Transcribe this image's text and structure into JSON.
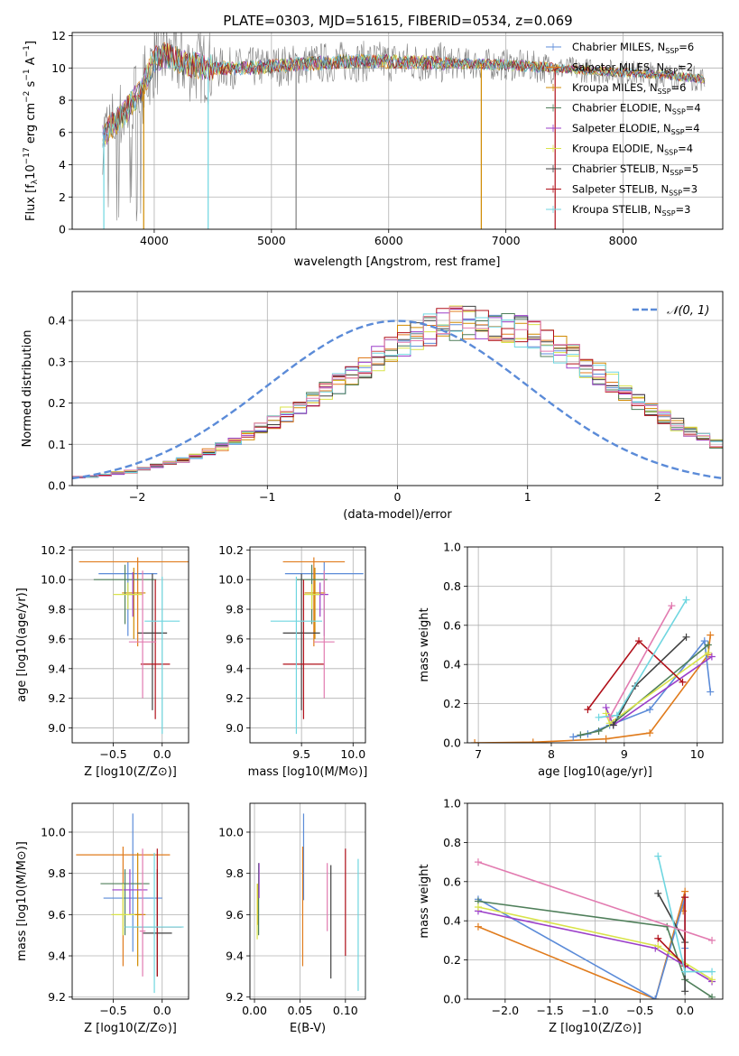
{
  "figure_title": "PLATE=0303, MJD=51615, FIBERID=0534, z=0.069",
  "colors": {
    "Chabrier MILES": "#5b8bd8",
    "Salpeter MILES": "#e07b1c",
    "Kroupa MILES": "#d08a00",
    "Chabrier ELODIE": "#4f7f5a",
    "Salpeter ELODIE": "#9b3fc9",
    "Kroupa ELODIE": "#d9e34a",
    "Chabrier STELIB": "#404040",
    "Salpeter STELIB": "#b0101a",
    "Kroupa STELIB": "#6fd6e0",
    "pink": "#e27bb0",
    "data": "#808080"
  },
  "chart_data": [
    {
      "id": "spectrum",
      "type": "line",
      "title": "PLATE=0303, MJD=51615, FIBERID=0534, z=0.069",
      "xlabel": "wavelength [Angstrom, rest frame]",
      "ylabel": "Flux [f_λ10^-17 erg cm^-2 s^-1 A^-1]",
      "xlim": [
        3300,
        8850
      ],
      "ylim": [
        0,
        12.2
      ],
      "xticks": [
        4000,
        5000,
        6000,
        7000,
        8000
      ],
      "yticks": [
        0,
        2,
        4,
        6,
        8,
        10,
        12
      ],
      "legend_position": "top-right",
      "legend": [
        {
          "label": "Chabrier MILES, N_SSP=6",
          "text": "Chabrier MILES, N",
          "sub": "SSP",
          "val": "=6",
          "color": "#5b8bd8"
        },
        {
          "label": "Salpeter MILES, N_SSP=2",
          "text": "Salpeter MILES, N",
          "sub": "SSP",
          "val": "=2",
          "color": "#e07b1c"
        },
        {
          "label": "Kroupa MILES, N_SSP=6",
          "text": "Kroupa MILES, N",
          "sub": "SSP",
          "val": "=6",
          "color": "#d08a00"
        },
        {
          "label": "Chabrier ELODIE, N_SSP=4",
          "text": "Chabrier ELODIE, N",
          "sub": "SSP",
          "val": "=4",
          "color": "#4f7f5a"
        },
        {
          "label": "Salpeter ELODIE, N_SSP=4",
          "text": "Salpeter ELODIE, N",
          "sub": "SSP",
          "val": "=4",
          "color": "#9b3fc9"
        },
        {
          "label": "Kroupa ELODIE, N_SSP=4",
          "text": "Kroupa ELODIE, N",
          "sub": "SSP",
          "val": "=4",
          "color": "#d9e34a"
        },
        {
          "label": "Chabrier STELIB, N_SSP=5",
          "text": "Chabrier STELIB, N",
          "sub": "SSP",
          "val": "=5",
          "color": "#404040"
        },
        {
          "label": "Salpeter STELIB, N_SSP=3",
          "text": "Salpeter STELIB, N",
          "sub": "SSP",
          "val": "=3",
          "color": "#b0101a"
        },
        {
          "label": "Kroupa STELIB, N_SSP=3",
          "text": "Kroupa STELIB, N",
          "sub": "SSP",
          "val": "=3",
          "color": "#6fd6e0"
        }
      ],
      "continuum_knots": [
        [
          3550,
          5.7
        ],
        [
          3650,
          6.5
        ],
        [
          3750,
          7.2
        ],
        [
          3900,
          8.8
        ],
        [
          4000,
          10.5
        ],
        [
          4100,
          10.8
        ],
        [
          4300,
          10.2
        ],
        [
          4500,
          10.0
        ],
        [
          4800,
          10.0
        ],
        [
          5200,
          10.2
        ],
        [
          5600,
          10.4
        ],
        [
          6000,
          10.4
        ],
        [
          6500,
          10.3
        ],
        [
          7000,
          10.2
        ],
        [
          7400,
          10.0
        ],
        [
          7800,
          9.8
        ],
        [
          8300,
          9.6
        ],
        [
          8700,
          9.3
        ]
      ],
      "dropout_lines": [
        3570,
        3910,
        4460,
        5210,
        6790,
        7420
      ]
    },
    {
      "id": "residuals",
      "type": "line",
      "xlabel": "(data-model)/error",
      "ylabel": "Normed distribution",
      "xlim": [
        -2.5,
        2.5
      ],
      "ylim": [
        0,
        0.47
      ],
      "xticks": [
        -2,
        -1,
        0,
        1,
        2
      ],
      "yticks": [
        0.0,
        0.1,
        0.2,
        0.3,
        0.4
      ],
      "legend_position": "top-right",
      "legend": [
        {
          "label": "𝒩(0, 1)",
          "color": "#5b8bd8",
          "style": "dashed"
        }
      ],
      "hist_bins": 50,
      "hist_range": [
        -2.5,
        2.5
      ],
      "hist_base": [
        0.02,
        0.022,
        0.025,
        0.03,
        0.034,
        0.04,
        0.047,
        0.054,
        0.062,
        0.072,
        0.083,
        0.094,
        0.108,
        0.122,
        0.138,
        0.155,
        0.172,
        0.19,
        0.21,
        0.228,
        0.25,
        0.272,
        0.29,
        0.31,
        0.328,
        0.35,
        0.364,
        0.378,
        0.388,
        0.394,
        0.398,
        0.396,
        0.392,
        0.385,
        0.375,
        0.362,
        0.346,
        0.33,
        0.31,
        0.29,
        0.268,
        0.248,
        0.226,
        0.205,
        0.185,
        0.165,
        0.148,
        0.13,
        0.115,
        0.1
      ]
    },
    {
      "id": "age_vs_Z",
      "type": "scatter",
      "xlabel": "Z [log10(Z/Z⊙)]",
      "ylabel": "age  [log10(age/yr)]",
      "xlim": [
        -0.92,
        0.27
      ],
      "ylim": [
        8.9,
        10.22
      ],
      "xticks": [
        -0.5,
        0.0
      ],
      "yticks": [
        9.0,
        9.2,
        9.4,
        9.6,
        9.8,
        10.0,
        10.2
      ],
      "points": [
        {
          "x": -0.35,
          "xerr": 0.3,
          "y": 10.04,
          "ylo": 9.62,
          "yhi": 10.12,
          "color": "#5b8bd8"
        },
        {
          "x": -0.25,
          "xerr": 0.6,
          "y": 10.12,
          "ylo": 9.55,
          "yhi": 10.15,
          "color": "#e07b1c"
        },
        {
          "x": -0.29,
          "xerr": 0.12,
          "y": 9.91,
          "ylo": 9.6,
          "yhi": 10.08,
          "color": "#d08a00"
        },
        {
          "x": -0.38,
          "xerr": 0.32,
          "y": 10.0,
          "ylo": 9.7,
          "yhi": 10.1,
          "color": "#4f7f5a"
        },
        {
          "x": -0.3,
          "xerr": 0.05,
          "y": 9.9,
          "ylo": 9.75,
          "yhi": 10.05,
          "color": "#9b3fc9"
        },
        {
          "x": -0.35,
          "xerr": 0.15,
          "y": 9.9,
          "ylo": 9.8,
          "yhi": 9.98,
          "color": "#d9e34a"
        },
        {
          "x": -0.1,
          "xerr": 0.15,
          "y": 9.64,
          "ylo": 9.12,
          "yhi": 10.04,
          "color": "#404040"
        },
        {
          "x": -0.07,
          "xerr": 0.15,
          "y": 9.43,
          "ylo": 9.06,
          "yhi": 10.0,
          "color": "#b0101a"
        },
        {
          "x": 0.0,
          "xerr": 0.18,
          "y": 9.72,
          "ylo": 8.96,
          "yhi": 10.02,
          "color": "#6fd6e0"
        },
        {
          "x": -0.2,
          "xerr": 0.14,
          "y": 9.58,
          "ylo": 9.2,
          "yhi": 10.06,
          "color": "#e27bb0"
        }
      ]
    },
    {
      "id": "age_vs_mass",
      "type": "scatter",
      "xlabel": "mass [log10(M/M⊙)]",
      "ylabel": "",
      "xlim": [
        9.0,
        10.12
      ],
      "ylim": [
        8.9,
        10.22
      ],
      "xticks": [
        9.5,
        10.0
      ],
      "yticks": [
        9.0,
        9.2,
        9.4,
        9.6,
        9.8,
        10.0,
        10.2
      ],
      "points": [
        {
          "x": 9.72,
          "xerr": 0.38,
          "y": 10.04,
          "ylo": 9.62,
          "yhi": 10.12,
          "color": "#5b8bd8"
        },
        {
          "x": 9.62,
          "xerr": 0.3,
          "y": 10.12,
          "ylo": 9.55,
          "yhi": 10.15,
          "color": "#e07b1c"
        },
        {
          "x": 9.63,
          "xerr": 0.1,
          "y": 9.91,
          "ylo": 9.6,
          "yhi": 10.08,
          "color": "#d08a00"
        },
        {
          "x": 9.6,
          "xerr": 0.15,
          "y": 10.0,
          "ylo": 9.7,
          "yhi": 10.1,
          "color": "#4f7f5a"
        },
        {
          "x": 9.68,
          "xerr": 0.08,
          "y": 9.9,
          "ylo": 9.75,
          "yhi": 9.98,
          "color": "#9b3fc9"
        },
        {
          "x": 9.6,
          "xerr": 0.08,
          "y": 9.9,
          "ylo": 9.8,
          "yhi": 9.97,
          "color": "#d9e34a"
        },
        {
          "x": 9.5,
          "xerr": 0.18,
          "y": 9.64,
          "ylo": 9.12,
          "yhi": 10.04,
          "color": "#404040"
        },
        {
          "x": 9.52,
          "xerr": 0.2,
          "y": 9.43,
          "ylo": 9.06,
          "yhi": 10.0,
          "color": "#b0101a"
        },
        {
          "x": 9.45,
          "xerr": 0.25,
          "y": 9.72,
          "ylo": 8.96,
          "yhi": 10.02,
          "color": "#6fd6e0"
        },
        {
          "x": 9.72,
          "xerr": 0.1,
          "y": 9.58,
          "ylo": 9.2,
          "yhi": 10.06,
          "color": "#e27bb0"
        }
      ]
    },
    {
      "id": "weight_vs_age",
      "type": "line",
      "xlabel": "age  [log10(age/yr)]",
      "ylabel": "mass weight",
      "xlim": [
        6.85,
        10.35
      ],
      "ylim": [
        0,
        1
      ],
      "xticks": [
        7,
        8,
        9,
        10
      ],
      "yticks": [
        0.0,
        0.2,
        0.4,
        0.6,
        0.8,
        1.0
      ],
      "series": [
        {
          "color": "#e07b1c",
          "x": [
            6.95,
            7.75,
            8.75,
            9.35,
            10.15,
            10.18
          ],
          "y": [
            0.0,
            0.003,
            0.02,
            0.05,
            0.45,
            0.55
          ]
        },
        {
          "color": "#5b8bd8",
          "x": [
            8.3,
            8.5,
            8.8,
            9.35,
            10.1,
            10.18
          ],
          "y": [
            0.03,
            0.045,
            0.09,
            0.17,
            0.52,
            0.26
          ]
        },
        {
          "color": "#4f7f5a",
          "x": [
            8.4,
            8.65,
            8.85,
            10.15
          ],
          "y": [
            0.04,
            0.06,
            0.1,
            0.5
          ]
        },
        {
          "color": "#9b3fc9",
          "x": [
            8.75,
            8.85,
            10.2
          ],
          "y": [
            0.18,
            0.09,
            0.44
          ]
        },
        {
          "color": "#d9e34a",
          "x": [
            8.75,
            8.8,
            10.15
          ],
          "y": [
            0.15,
            0.1,
            0.46
          ]
        },
        {
          "color": "#404040",
          "x": [
            8.85,
            9.15,
            9.85
          ],
          "y": [
            0.09,
            0.29,
            0.54
          ]
        },
        {
          "color": "#b0101a",
          "x": [
            8.5,
            9.2,
            9.8
          ],
          "y": [
            0.17,
            0.52,
            0.31
          ]
        },
        {
          "color": "#6fd6e0",
          "x": [
            8.65,
            8.9,
            9.85
          ],
          "y": [
            0.13,
            0.14,
            0.73
          ]
        },
        {
          "color": "#e27bb0",
          "x": [
            8.8,
            9.65
          ],
          "y": [
            0.13,
            0.7
          ]
        }
      ]
    },
    {
      "id": "mass_vs_Z",
      "type": "scatter",
      "xlabel": "Z [log10(Z/Z⊙)]",
      "ylabel": "mass [log10(M/M⊙)]",
      "xlim": [
        -0.92,
        0.27
      ],
      "ylim": [
        9.19,
        10.14
      ],
      "xticks": [
        -0.5,
        0.0
      ],
      "yticks": [
        9.2,
        9.4,
        9.6,
        9.8,
        10.0
      ],
      "points": [
        {
          "x": -0.3,
          "xerr": 0.3,
          "y": 9.68,
          "ylo": 9.42,
          "yhi": 10.09,
          "color": "#5b8bd8"
        },
        {
          "x": -0.4,
          "xerr": 0.48,
          "y": 9.89,
          "ylo": 9.35,
          "yhi": 9.93,
          "color": "#e07b1c"
        },
        {
          "x": -0.25,
          "xerr": 0.08,
          "y": 9.6,
          "ylo": 9.35,
          "yhi": 9.9,
          "color": "#d08a00"
        },
        {
          "x": -0.38,
          "xerr": 0.25,
          "y": 9.75,
          "ylo": 9.5,
          "yhi": 9.82,
          "color": "#4f7f5a"
        },
        {
          "x": -0.33,
          "xerr": 0.18,
          "y": 9.72,
          "ylo": 9.6,
          "yhi": 9.82,
          "color": "#9b3fc9"
        },
        {
          "x": -0.4,
          "xerr": 0.12,
          "y": 9.6,
          "ylo": 9.5,
          "yhi": 9.75,
          "color": "#d9e34a"
        },
        {
          "x": -0.05,
          "xerr": 0.15,
          "y": 9.51,
          "ylo": 9.3,
          "yhi": 9.82,
          "color": "#404040"
        },
        {
          "x": -0.05,
          "xerr": 0.25,
          "y": 9.54,
          "ylo": 9.3,
          "yhi": 9.92,
          "color": "#b0101a"
        },
        {
          "x": -0.08,
          "xerr": 0.3,
          "y": 9.54,
          "ylo": 9.22,
          "yhi": 9.9,
          "color": "#6fd6e0"
        },
        {
          "x": -0.2,
          "xerr": 0.03,
          "y": 9.52,
          "ylo": 9.3,
          "yhi": 9.92,
          "color": "#e27bb0"
        }
      ]
    },
    {
      "id": "mass_vs_EBV",
      "type": "scatter",
      "xlabel": "E(B-V)",
      "ylabel": "",
      "xlim": [
        -0.005,
        0.122
      ],
      "ylim": [
        9.19,
        10.14
      ],
      "xticks": [
        0.0,
        0.05,
        0.1
      ],
      "yticks": [
        9.2,
        9.4,
        9.6,
        9.8,
        10.0
      ],
      "points": [
        {
          "x": 0.054,
          "ylo": 9.67,
          "yhi": 10.09,
          "color": "#5b8bd8"
        },
        {
          "x": 0.053,
          "ylo": 9.35,
          "yhi": 9.93,
          "color": "#e07b1c"
        },
        {
          "x": 0.004,
          "ylo": 9.55,
          "yhi": 9.75,
          "color": "#d08a00"
        },
        {
          "x": 0.0045,
          "ylo": 9.5,
          "yhi": 9.85,
          "color": "#4f7f5a"
        },
        {
          "x": 0.005,
          "ylo": 9.68,
          "yhi": 9.85,
          "color": "#9b3fc9"
        },
        {
          "x": 0.003,
          "ylo": 9.48,
          "yhi": 9.75,
          "color": "#d9e34a"
        },
        {
          "x": 0.084,
          "ylo": 9.29,
          "yhi": 9.84,
          "color": "#404040"
        },
        {
          "x": 0.1,
          "ylo": 9.4,
          "yhi": 9.92,
          "color": "#b0101a"
        },
        {
          "x": 0.114,
          "ylo": 9.23,
          "yhi": 9.87,
          "color": "#6fd6e0"
        },
        {
          "x": 0.08,
          "ylo": 9.52,
          "yhi": 9.85,
          "color": "#e27bb0"
        }
      ]
    },
    {
      "id": "weight_vs_Z",
      "type": "line",
      "xlabel": "Z [log10(Z/Z⊙)]",
      "ylabel": "mass weight",
      "xlim": [
        -2.42,
        0.42
      ],
      "ylim": [
        0,
        1
      ],
      "xticks": [
        -2.0,
        -1.5,
        -1.0,
        -0.5,
        0.0
      ],
      "yticks": [
        0.0,
        0.2,
        0.4,
        0.6,
        0.8,
        1.0
      ],
      "series": [
        {
          "color": "#e07b1c",
          "x": [
            -2.3,
            -0.33,
            0.0,
            -0.02
          ],
          "y": [
            0.37,
            0.0,
            0.55,
            0.45
          ]
        },
        {
          "color": "#5b8bd8",
          "x": [
            -2.3,
            -0.33,
            0.0,
            0.0
          ],
          "y": [
            0.51,
            0.0,
            0.52,
            0.26
          ]
        },
        {
          "color": "#4f7f5a",
          "x": [
            -2.3,
            -0.2,
            0.0,
            0.3
          ],
          "y": [
            0.5,
            0.37,
            0.1,
            0.01
          ]
        },
        {
          "color": "#9b3fc9",
          "x": [
            -2.3,
            -0.33,
            0.3
          ],
          "y": [
            0.45,
            0.26,
            0.09
          ]
        },
        {
          "color": "#d9e34a",
          "x": [
            -2.3,
            -0.3,
            0.3
          ],
          "y": [
            0.47,
            0.27,
            0.1
          ]
        },
        {
          "color": "#404040",
          "x": [
            -0.3,
            0.0,
            0.0
          ],
          "y": [
            0.54,
            0.29,
            0.04
          ]
        },
        {
          "color": "#b0101a",
          "x": [
            -0.3,
            0.0,
            0.0
          ],
          "y": [
            0.31,
            0.17,
            0.52
          ]
        },
        {
          "color": "#6fd6e0",
          "x": [
            -0.3,
            0.0,
            0.3
          ],
          "y": [
            0.73,
            0.14,
            0.14
          ]
        },
        {
          "color": "#e27bb0",
          "x": [
            -2.3,
            0.3
          ],
          "y": [
            0.7,
            0.3
          ]
        }
      ]
    }
  ]
}
